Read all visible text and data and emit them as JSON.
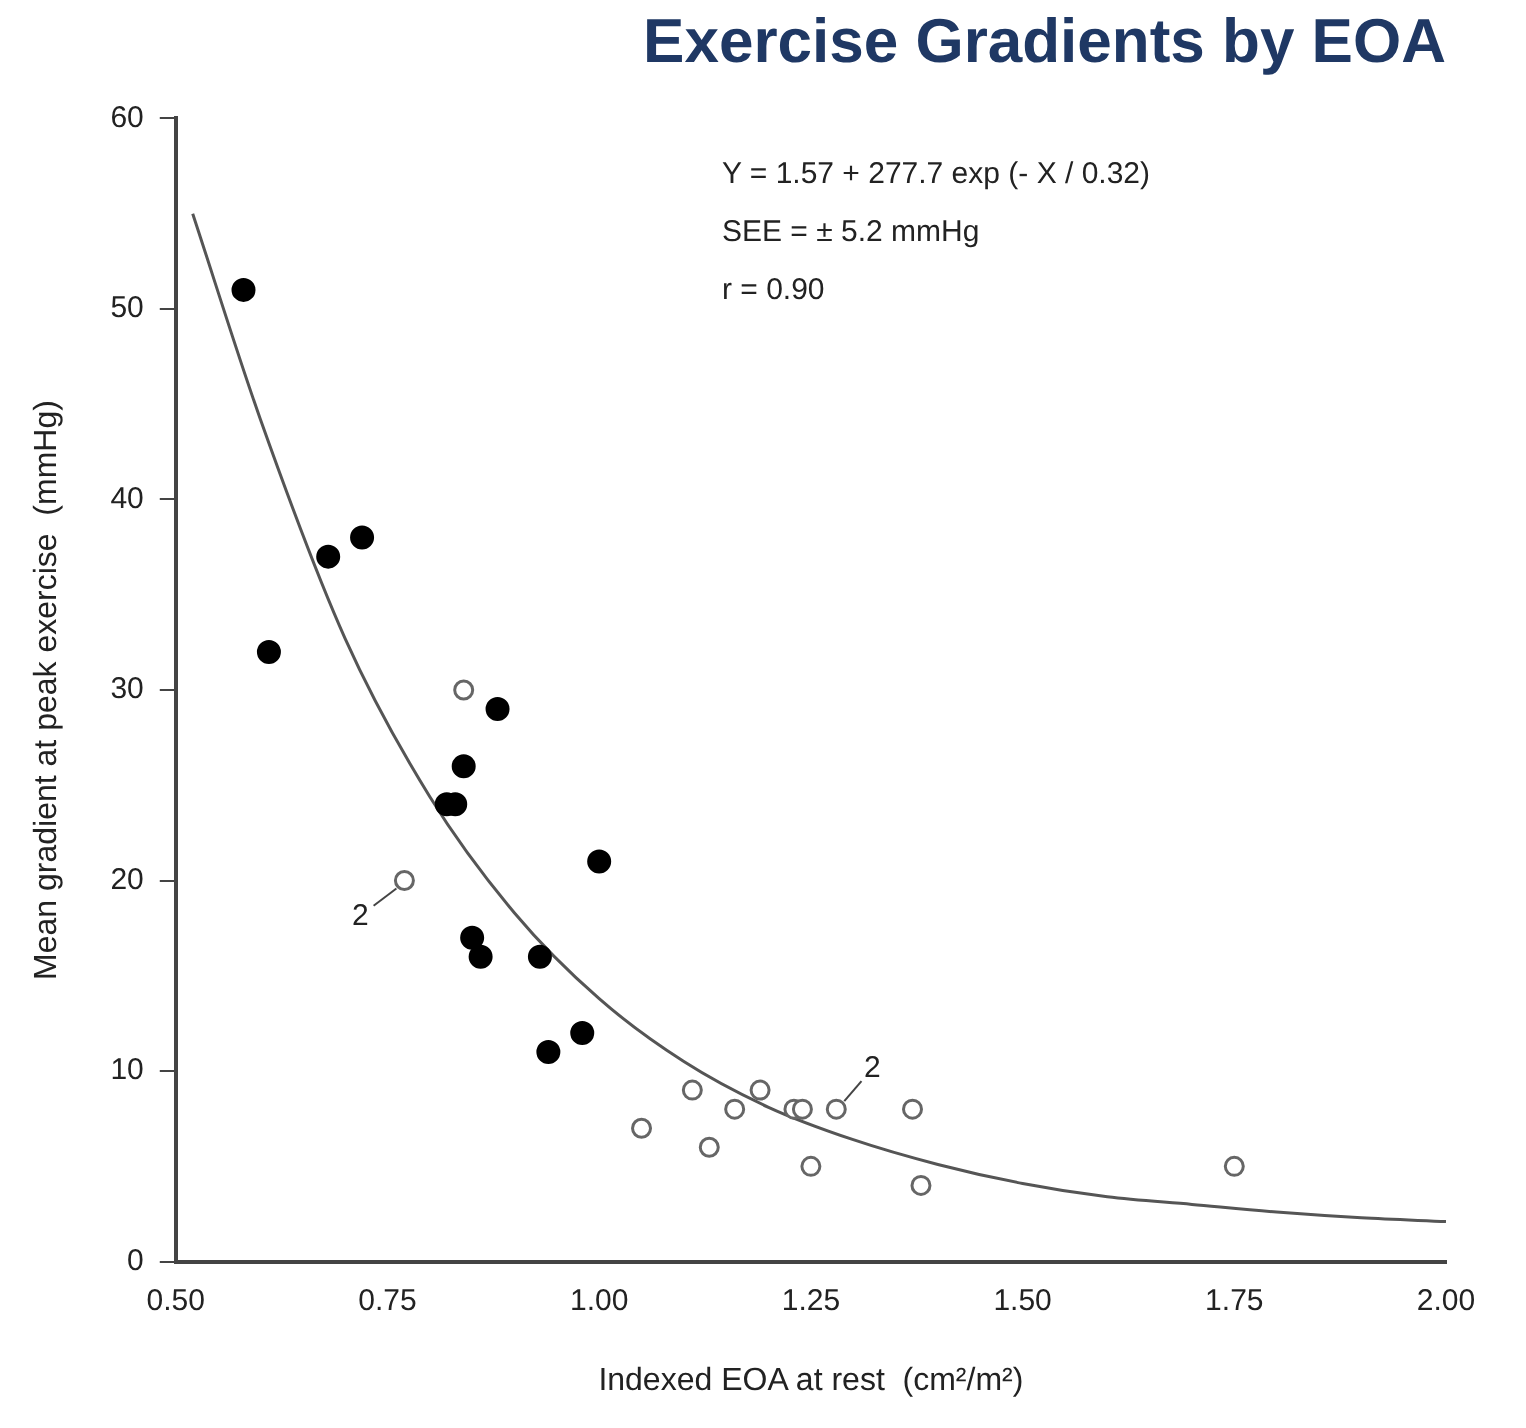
{
  "chart_data": {
    "type": "scatter",
    "title": "Exercise Gradients by EOA",
    "xlabel": "Indexed EOA at rest  (cm²/m²)",
    "ylabel": "Mean gradient at peak exercise  (mmHg)",
    "xlim": [
      0.5,
      2.0
    ],
    "ylim": [
      0,
      60
    ],
    "xticks": [
      {
        "value": 0.5,
        "label": "0.50"
      },
      {
        "value": 0.75,
        "label": "0.75"
      },
      {
        "value": 1.0,
        "label": "1.00"
      },
      {
        "value": 1.25,
        "label": "1.25"
      },
      {
        "value": 1.5,
        "label": "1.50"
      },
      {
        "value": 1.75,
        "label": "1.75"
      },
      {
        "value": 2.0,
        "label": "2.00"
      }
    ],
    "yticks": [
      0,
      10,
      20,
      30,
      40,
      50,
      60
    ],
    "grid": false,
    "legend": false,
    "marker": "circle",
    "annotations": [
      "Y = 1.57 + 277.7 exp (- X / 0.32)",
      "SEE = ± 5.2 mmHg",
      "r = 0.90",
      {
        "text": "2",
        "x": 0.77,
        "y": 20
      },
      {
        "text": "2",
        "x": 1.28,
        "y": 8
      }
    ],
    "series": [
      {
        "color": "#000000",
        "x": [
          0.58,
          0.61,
          0.68,
          0.72,
          0.82,
          0.83,
          0.84,
          0.85,
          0.86,
          0.88,
          0.93,
          0.94,
          0.98,
          1.0
        ],
        "values": [
          51,
          32,
          37,
          38,
          24,
          24,
          26,
          17,
          16,
          29,
          16,
          11,
          12,
          21
        ]
      },
      {
        "color": "#666666",
        "x": [
          0.77,
          0.84,
          1.05,
          1.11,
          1.13,
          1.16,
          1.19,
          1.23,
          1.24,
          1.25,
          1.28,
          1.37,
          1.38,
          1.75
        ],
        "values": [
          20,
          30,
          7,
          9,
          6,
          8,
          9,
          8,
          8,
          5,
          8,
          8,
          4,
          5
        ]
      },
      {
        "type": "line",
        "color": "#555555",
        "marker": "none",
        "x": [
          0.52,
          0.6,
          0.7,
          0.8,
          0.9,
          1.0,
          1.1,
          1.2,
          1.3,
          1.4,
          1.5,
          1.6,
          1.7,
          1.8,
          1.9,
          2.0
        ],
        "values": [
          55,
          44.2,
          32.7,
          24.4,
          18.3,
          13.8,
          10.5,
          8.1,
          6.4,
          5.1,
          4.1,
          3.4,
          3.0,
          2.6,
          2.3,
          2.1
        ]
      }
    ]
  }
}
